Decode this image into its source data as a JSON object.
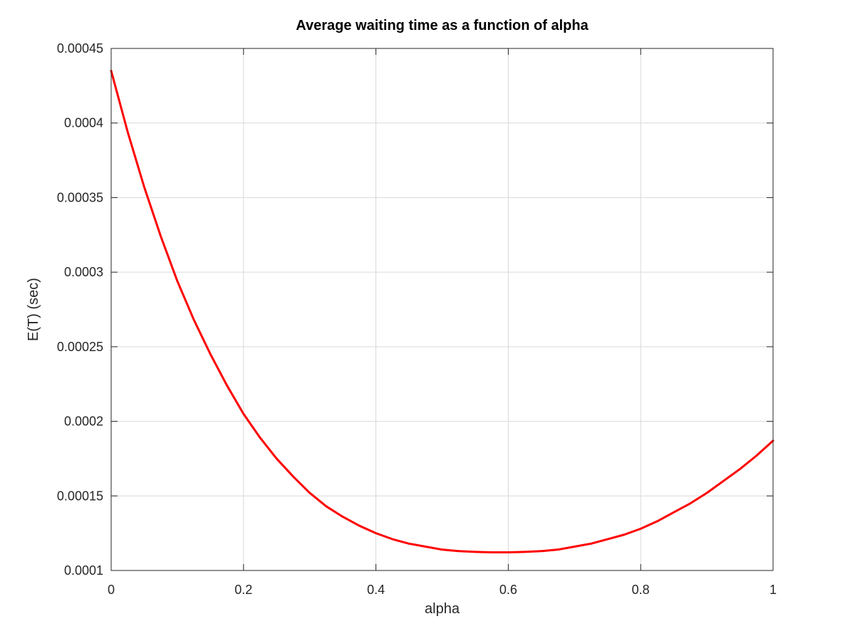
{
  "chart_data": {
    "type": "line",
    "title": "Average waiting time as a function of alpha",
    "xlabel": "alpha",
    "ylabel": "E(T) (sec)",
    "xlim": [
      0,
      1
    ],
    "ylim": [
      0.0001,
      0.00045
    ],
    "x_ticks": [
      0,
      0.2,
      0.4,
      0.6,
      0.8,
      1
    ],
    "x_tick_labels": [
      "0",
      "0.2",
      "0.4",
      "0.6",
      "0.8",
      "1"
    ],
    "y_ticks": [
      0.0001,
      0.00015,
      0.0002,
      0.00025,
      0.0003,
      0.00035,
      0.0004,
      0.00045
    ],
    "y_tick_labels": [
      "0.0001",
      "0.00015",
      "0.0002",
      "0.00025",
      "0.0003",
      "0.00035",
      "0.0004",
      "0.00045"
    ],
    "grid": true,
    "series": [
      {
        "color": "#ff0000",
        "x": [
          0,
          0.025,
          0.05,
          0.075,
          0.1,
          0.125,
          0.15,
          0.175,
          0.2,
          0.225,
          0.25,
          0.275,
          0.3,
          0.325,
          0.35,
          0.375,
          0.4,
          0.425,
          0.45,
          0.475,
          0.5,
          0.525,
          0.55,
          0.575,
          0.6,
          0.625,
          0.65,
          0.675,
          0.7,
          0.725,
          0.75,
          0.775,
          0.8,
          0.825,
          0.85,
          0.875,
          0.9,
          0.925,
          0.95,
          0.975,
          1
        ],
        "y": [
          0.000435,
          0.000394,
          0.000357,
          0.000324,
          0.000294,
          0.000268,
          0.000245,
          0.000224,
          0.000205,
          0.000189,
          0.000175,
          0.000163,
          0.000152,
          0.000143,
          0.000136,
          0.00013,
          0.000125,
          0.000121,
          0.000118,
          0.000116,
          0.000114,
          0.000113,
          0.0001125,
          0.0001122,
          0.0001122,
          0.0001125,
          0.000113,
          0.000114,
          0.000116,
          0.000118,
          0.000121,
          0.000124,
          0.000128,
          0.000133,
          0.000139,
          0.000145,
          0.000152,
          0.00016,
          0.000168,
          0.000177,
          0.000187
        ]
      }
    ]
  }
}
